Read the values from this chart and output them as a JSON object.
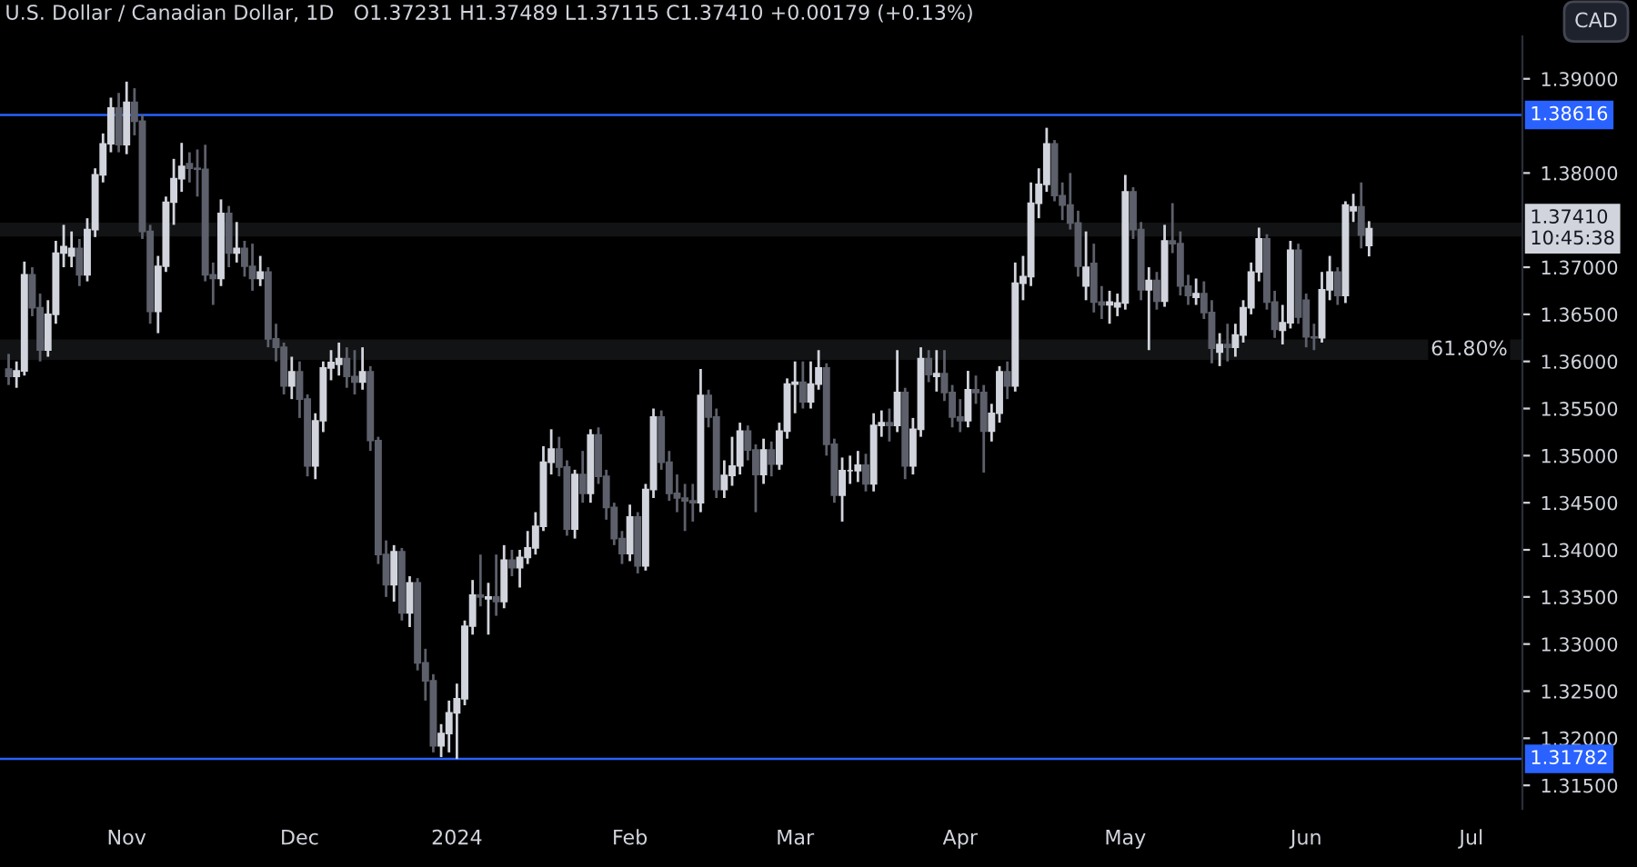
{
  "chart_data": {
    "type": "candlestick",
    "title": "U.S. Dollar / Canadian Dollar, 1D",
    "subtitle": "O1.37231 H1.37489 L1.37115 C1.37410 +0.00179 (+0.13%)",
    "annotations": [
      "CAD",
      "1.37410\n10:45:38"
    ],
    "categories": [
      null,
      null,
      null,
      null,
      null,
      null,
      null,
      null,
      null,
      null,
      null,
      null,
      null,
      null,
      null,
      "Nov",
      null,
      null,
      null,
      null,
      null,
      null,
      null,
      null,
      null,
      null,
      null,
      null,
      null,
      null,
      null,
      null,
      null,
      null,
      null,
      null,
      null,
      "Dec",
      null,
      null,
      null,
      null,
      null,
      null,
      null,
      null,
      null,
      null,
      null,
      null,
      null,
      null,
      null,
      null,
      null,
      null,
      null,
      "2024",
      null,
      null,
      null,
      null,
      null,
      null,
      null,
      null,
      null,
      null,
      null,
      null,
      null,
      null,
      null,
      null,
      null,
      null,
      null,
      null,
      null,
      "Feb",
      null,
      null,
      null,
      null,
      null,
      null,
      null,
      null,
      null,
      null,
      null,
      null,
      null,
      null,
      null,
      null,
      null,
      null,
      null,
      null,
      "Mar",
      null,
      null,
      null,
      null,
      null,
      null,
      null,
      null,
      null,
      null,
      null,
      null,
      null,
      null,
      null,
      null,
      null,
      null,
      null,
      null,
      "Apr",
      null,
      null,
      null,
      null,
      null,
      null,
      null,
      null,
      null,
      null,
      null,
      null,
      null,
      null,
      null,
      null,
      null,
      null,
      null,
      null,
      "May",
      null,
      null,
      null,
      null,
      null,
      null,
      null,
      null,
      null,
      null,
      null,
      null,
      null,
      null,
      null,
      null,
      null,
      null,
      null,
      null,
      null,
      null,
      "Jun",
      null,
      null,
      null,
      null,
      null,
      null,
      null,
      null,
      null,
      null,
      null,
      null,
      null,
      null,
      null,
      null,
      null,
      null,
      null,
      null,
      "Jul",
      null,
      null,
      null,
      null,
      null,
      null
    ],
    "ohlc": [
      [
        1.3592,
        1.3608,
        1.3575,
        1.3584
      ],
      [
        1.3584,
        1.36,
        1.3572,
        1.359
      ],
      [
        1.359,
        1.3706,
        1.3585,
        1.3692
      ],
      [
        1.3692,
        1.37,
        1.3648,
        1.3657
      ],
      [
        1.3657,
        1.3672,
        1.36,
        1.3612
      ],
      [
        1.3612,
        1.3665,
        1.3605,
        1.365
      ],
      [
        1.365,
        1.3728,
        1.364,
        1.3715
      ],
      [
        1.3715,
        1.3745,
        1.37,
        1.3722
      ],
      [
        1.3712,
        1.3738,
        1.37,
        1.372
      ],
      [
        1.372,
        1.373,
        1.368,
        1.3692
      ],
      [
        1.3692,
        1.3752,
        1.3685,
        1.374
      ],
      [
        1.374,
        1.3805,
        1.3732,
        1.3798
      ],
      [
        1.3798,
        1.3842,
        1.379,
        1.3831
      ],
      [
        1.3831,
        1.388,
        1.3822,
        1.3869
      ],
      [
        1.3869,
        1.3885,
        1.3822,
        1.383
      ],
      [
        1.383,
        1.3897,
        1.382,
        1.3875
      ],
      [
        1.3875,
        1.389,
        1.384,
        1.3855
      ],
      [
        1.3855,
        1.3862,
        1.373,
        1.3738
      ],
      [
        1.3738,
        1.3745,
        1.364,
        1.3653
      ],
      [
        1.3653,
        1.3712,
        1.363,
        1.3701
      ],
      [
        1.3701,
        1.3775,
        1.3695,
        1.3769
      ],
      [
        1.3769,
        1.3815,
        1.3745,
        1.3794
      ],
      [
        1.3794,
        1.3832,
        1.378,
        1.3807
      ],
      [
        1.381,
        1.3822,
        1.379,
        1.3805
      ],
      [
        1.3805,
        1.3825,
        1.3775,
        1.3804
      ],
      [
        1.3804,
        1.383,
        1.3685,
        1.3692
      ],
      [
        1.3692,
        1.3705,
        1.366,
        1.3688
      ],
      [
        1.3688,
        1.3772,
        1.368,
        1.3757
      ],
      [
        1.3757,
        1.3765,
        1.37,
        1.3715
      ],
      [
        1.3715,
        1.3748,
        1.3705,
        1.372
      ],
      [
        1.372,
        1.3728,
        1.369,
        1.3701
      ],
      [
        1.3701,
        1.3725,
        1.3675,
        1.3688
      ],
      [
        1.3688,
        1.3712,
        1.368,
        1.3695
      ],
      [
        1.3695,
        1.37,
        1.3615,
        1.3624
      ],
      [
        1.3624,
        1.364,
        1.36,
        1.3615
      ],
      [
        1.3615,
        1.362,
        1.3565,
        1.3574
      ],
      [
        1.3574,
        1.3605,
        1.356,
        1.3589
      ],
      [
        1.3589,
        1.36,
        1.354,
        1.356
      ],
      [
        1.356,
        1.3565,
        1.3478,
        1.3489
      ],
      [
        1.3489,
        1.3545,
        1.3475,
        1.3537
      ],
      [
        1.3537,
        1.36,
        1.3525,
        1.3593
      ],
      [
        1.3593,
        1.3612,
        1.358,
        1.3599
      ],
      [
        1.3597,
        1.362,
        1.3585,
        1.3603
      ],
      [
        1.3603,
        1.3615,
        1.3572,
        1.3584
      ],
      [
        1.3584,
        1.3612,
        1.3565,
        1.3578
      ],
      [
        1.3578,
        1.3615,
        1.357,
        1.3589
      ],
      [
        1.3589,
        1.3595,
        1.3505,
        1.3516
      ],
      [
        1.3516,
        1.352,
        1.3385,
        1.3395
      ],
      [
        1.3395,
        1.341,
        1.335,
        1.3363
      ],
      [
        1.3363,
        1.3405,
        1.3345,
        1.3398
      ],
      [
        1.3398,
        1.3402,
        1.3325,
        1.3333
      ],
      [
        1.3333,
        1.3372,
        1.3318,
        1.3365
      ],
      [
        1.3365,
        1.337,
        1.3272,
        1.328
      ],
      [
        1.328,
        1.3295,
        1.324,
        1.3261
      ],
      [
        1.3261,
        1.3268,
        1.3185,
        1.3192
      ],
      [
        1.3192,
        1.3215,
        1.318,
        1.3205
      ],
      [
        1.3205,
        1.324,
        1.3185,
        1.3227
      ],
      [
        1.3227,
        1.3258,
        1.3178,
        1.3242
      ],
      [
        1.3242,
        1.3325,
        1.3235,
        1.3319
      ],
      [
        1.3319,
        1.3368,
        1.331,
        1.3352
      ],
      [
        1.3352,
        1.3395,
        1.334,
        1.335
      ],
      [
        1.3348,
        1.3365,
        1.331,
        1.335
      ],
      [
        1.335,
        1.3395,
        1.333,
        1.3345
      ],
      [
        1.3345,
        1.3405,
        1.3338,
        1.3389
      ],
      [
        1.3389,
        1.34,
        1.3372,
        1.3381
      ],
      [
        1.3381,
        1.34,
        1.336,
        1.3392
      ],
      [
        1.3392,
        1.342,
        1.3385,
        1.3402
      ],
      [
        1.3402,
        1.344,
        1.3395,
        1.3425
      ],
      [
        1.3425,
        1.351,
        1.342,
        1.3493
      ],
      [
        1.3493,
        1.3528,
        1.348,
        1.3507
      ],
      [
        1.3507,
        1.352,
        1.3478,
        1.3488
      ],
      [
        1.3488,
        1.3495,
        1.3415,
        1.3422
      ],
      [
        1.3422,
        1.3485,
        1.3412,
        1.348
      ],
      [
        1.348,
        1.3505,
        1.345,
        1.346
      ],
      [
        1.346,
        1.3528,
        1.345,
        1.3522
      ],
      [
        1.3522,
        1.353,
        1.347,
        1.3478
      ],
      [
        1.3478,
        1.3485,
        1.3432,
        1.3445
      ],
      [
        1.3445,
        1.345,
        1.3405,
        1.3412
      ],
      [
        1.3412,
        1.342,
        1.3385,
        1.3396
      ],
      [
        1.3396,
        1.3448,
        1.3388,
        1.3435
      ],
      [
        1.3435,
        1.344,
        1.3375,
        1.3383
      ],
      [
        1.3383,
        1.347,
        1.3378,
        1.3464
      ],
      [
        1.3464,
        1.355,
        1.3455,
        1.3541
      ],
      [
        1.3541,
        1.3548,
        1.3485,
        1.3493
      ],
      [
        1.3493,
        1.3505,
        1.3452,
        1.346
      ],
      [
        1.346,
        1.348,
        1.344,
        1.3455
      ],
      [
        1.3455,
        1.347,
        1.342,
        1.3452
      ],
      [
        1.3452,
        1.347,
        1.343,
        1.345
      ],
      [
        1.345,
        1.3592,
        1.344,
        1.3564
      ],
      [
        1.3564,
        1.357,
        1.353,
        1.3541
      ],
      [
        1.3541,
        1.355,
        1.3455,
        1.3464
      ],
      [
        1.3464,
        1.3495,
        1.3455,
        1.3479
      ],
      [
        1.3479,
        1.352,
        1.3468,
        1.3489
      ],
      [
        1.3489,
        1.3535,
        1.348,
        1.3526
      ],
      [
        1.3526,
        1.3532,
        1.3495,
        1.3506
      ],
      [
        1.3506,
        1.3512,
        1.344,
        1.348
      ],
      [
        1.348,
        1.3518,
        1.347,
        1.3506
      ],
      [
        1.3506,
        1.3515,
        1.3478,
        1.3491
      ],
      [
        1.3491,
        1.3535,
        1.3485,
        1.3526
      ],
      [
        1.3526,
        1.3582,
        1.3518,
        1.3576
      ],
      [
        1.3576,
        1.36,
        1.3545,
        1.3578
      ],
      [
        1.3578,
        1.36,
        1.355,
        1.3557
      ],
      [
        1.3557,
        1.36,
        1.355,
        1.3576
      ],
      [
        1.3576,
        1.3612,
        1.357,
        1.3593
      ],
      [
        1.3593,
        1.3598,
        1.35,
        1.3512
      ],
      [
        1.3512,
        1.3518,
        1.345,
        1.3458
      ],
      [
        1.3458,
        1.3498,
        1.343,
        1.3484
      ],
      [
        1.3484,
        1.35,
        1.347,
        1.3484
      ],
      [
        1.3484,
        1.3505,
        1.3472,
        1.349
      ],
      [
        1.349,
        1.3502,
        1.3462,
        1.347
      ],
      [
        1.347,
        1.3545,
        1.3462,
        1.3532
      ],
      [
        1.3532,
        1.3548,
        1.352,
        1.3535
      ],
      [
        1.3535,
        1.355,
        1.3515,
        1.3532
      ],
      [
        1.3532,
        1.3612,
        1.3525,
        1.3567
      ],
      [
        1.3567,
        1.3572,
        1.3475,
        1.3489
      ],
      [
        1.3489,
        1.354,
        1.348,
        1.3528
      ],
      [
        1.3528,
        1.3615,
        1.352,
        1.3603
      ],
      [
        1.3603,
        1.3612,
        1.3578,
        1.3586
      ],
      [
        1.3584,
        1.3612,
        1.3568,
        1.3587
      ],
      [
        1.3587,
        1.3612,
        1.3558,
        1.3567
      ],
      [
        1.3567,
        1.3575,
        1.353,
        1.3541
      ],
      [
        1.3541,
        1.356,
        1.3525,
        1.3537
      ],
      [
        1.3537,
        1.359,
        1.353,
        1.357
      ],
      [
        1.357,
        1.3585,
        1.3555,
        1.3567
      ],
      [
        1.3567,
        1.3575,
        1.3482,
        1.3526
      ],
      [
        1.3526,
        1.3555,
        1.3515,
        1.3545
      ],
      [
        1.3545,
        1.3595,
        1.3535,
        1.3589
      ],
      [
        1.3589,
        1.36,
        1.356,
        1.3574
      ],
      [
        1.3574,
        1.3705,
        1.3568,
        1.3683
      ],
      [
        1.3683,
        1.3712,
        1.3665,
        1.369
      ],
      [
        1.369,
        1.379,
        1.368,
        1.3768
      ],
      [
        1.3768,
        1.3805,
        1.3752,
        1.3788
      ],
      [
        1.3788,
        1.3848,
        1.378,
        1.3831
      ],
      [
        1.3831,
        1.3835,
        1.377,
        1.3776
      ],
      [
        1.3776,
        1.379,
        1.375,
        1.3766
      ],
      [
        1.3766,
        1.38,
        1.374,
        1.3747
      ],
      [
        1.3747,
        1.376,
        1.369,
        1.3701
      ],
      [
        1.368,
        1.3738,
        1.3665,
        1.37
      ],
      [
        1.3704,
        1.3725,
        1.3652,
        1.3663
      ],
      [
        1.3663,
        1.368,
        1.3645,
        1.366
      ],
      [
        1.366,
        1.3675,
        1.364,
        1.3663
      ],
      [
        1.3658,
        1.3672,
        1.3648,
        1.3662
      ],
      [
        1.3662,
        1.3798,
        1.3655,
        1.378
      ],
      [
        1.378,
        1.3785,
        1.373,
        1.374
      ],
      [
        1.374,
        1.3748,
        1.3665,
        1.3676
      ],
      [
        1.3676,
        1.37,
        1.3612,
        1.3686
      ],
      [
        1.3686,
        1.3695,
        1.3655,
        1.3664
      ],
      [
        1.3664,
        1.3745,
        1.3658,
        1.3728
      ],
      [
        1.3728,
        1.3768,
        1.3715,
        1.3725
      ],
      [
        1.3725,
        1.3738,
        1.367,
        1.368
      ],
      [
        1.368,
        1.3692,
        1.366,
        1.367
      ],
      [
        1.3668,
        1.3688,
        1.366,
        1.3672
      ],
      [
        1.3672,
        1.3685,
        1.3645,
        1.3652
      ],
      [
        1.3652,
        1.3665,
        1.3598,
        1.3614
      ],
      [
        1.361,
        1.363,
        1.3595,
        1.3618
      ],
      [
        1.3618,
        1.364,
        1.36,
        1.3615
      ],
      [
        1.3615,
        1.364,
        1.3605,
        1.3628
      ],
      [
        1.3628,
        1.3665,
        1.362,
        1.3657
      ],
      [
        1.3657,
        1.3705,
        1.365,
        1.3695
      ],
      [
        1.3695,
        1.3742,
        1.3685,
        1.373
      ],
      [
        1.373,
        1.3735,
        1.3655,
        1.3663
      ],
      [
        1.3663,
        1.3675,
        1.3625,
        1.3634
      ],
      [
        1.3633,
        1.366,
        1.3618,
        1.3641
      ],
      [
        1.3641,
        1.3728,
        1.3635,
        1.3718
      ],
      [
        1.3718,
        1.3725,
        1.364,
        1.3647
      ],
      [
        1.3665,
        1.3672,
        1.3615,
        1.3626
      ],
      [
        1.3626,
        1.364,
        1.3612,
        1.3625
      ],
      [
        1.3625,
        1.3695,
        1.362,
        1.3676
      ],
      [
        1.3676,
        1.3712,
        1.3665,
        1.3695
      ],
      [
        1.3695,
        1.37,
        1.366,
        1.367
      ],
      [
        1.367,
        1.377,
        1.3662,
        1.3766
      ],
      [
        1.376,
        1.3778,
        1.3748,
        1.3764
      ],
      [
        1.3764,
        1.379,
        1.372,
        1.3734
      ],
      [
        1.37231,
        1.37489,
        1.37115,
        1.3741
      ],
      null,
      null,
      null,
      null,
      null,
      null,
      null,
      null,
      null,
      null,
      null,
      null,
      null,
      null,
      null,
      null,
      null,
      null,
      null
    ],
    "ylim": [
      1.3125,
      1.3945
    ],
    "yticks": [
      {
        "value": 1.315,
        "label": "1.31500"
      },
      {
        "value": 1.32,
        "label": "1.32000"
      },
      {
        "value": 1.325,
        "label": "1.32500"
      },
      {
        "value": 1.33,
        "label": "1.33000"
      },
      {
        "value": 1.335,
        "label": "1.33500"
      },
      {
        "value": 1.34,
        "label": "1.34000"
      },
      {
        "value": 1.345,
        "label": "1.34500"
      },
      {
        "value": 1.35,
        "label": "1.35000"
      },
      {
        "value": 1.355,
        "label": "1.35500"
      },
      {
        "value": 1.36,
        "label": "1.36000"
      },
      {
        "value": 1.365,
        "label": "1.36500"
      },
      {
        "value": 1.37,
        "label": "1.37000"
      },
      {
        "value": 1.38,
        "label": "1.38000"
      },
      {
        "value": 1.39,
        "label": "1.39000"
      }
    ],
    "ref_lines": [
      {
        "axis": "y",
        "value": 1.38616,
        "label": "1.38616",
        "color": "#2962ff"
      },
      {
        "axis": "y",
        "value": 1.31782,
        "label": "1.31782",
        "color": "#2962ff"
      }
    ],
    "bands": [
      {
        "axis": "y",
        "from": 1.3603,
        "to": 1.3622,
        "label": "61.80%",
        "color": "#9598a1"
      },
      {
        "axis": "y",
        "from": 1.3734,
        "to": 1.3746,
        "color": "#9598a1"
      }
    ],
    "grid": false,
    "legend": false
  }
}
